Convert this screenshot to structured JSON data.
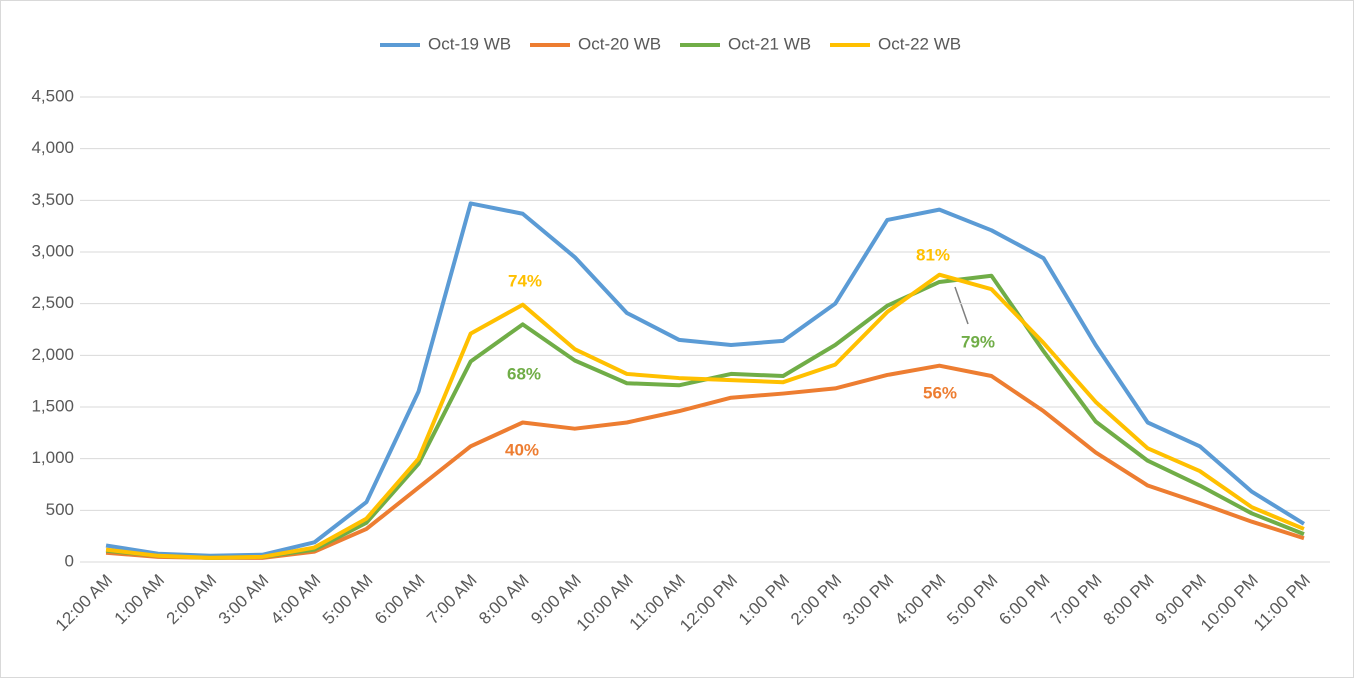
{
  "chart_data": {
    "type": "line",
    "categories": [
      "12:00 AM",
      "1:00 AM",
      "2:00 AM",
      "3:00 AM",
      "4:00 AM",
      "5:00 AM",
      "6:00 AM",
      "7:00 AM",
      "8:00 AM",
      "9:00 AM",
      "10:00 AM",
      "11:00 AM",
      "12:00 PM",
      "1:00 PM",
      "2:00 PM",
      "3:00 PM",
      "4:00 PM",
      "5:00 PM",
      "6:00 PM",
      "7:00 PM",
      "8:00 PM",
      "9:00 PM",
      "10:00 PM",
      "11:00 PM"
    ],
    "series": [
      {
        "name": "Oct-19 WB",
        "color": "#5b9bd5",
        "values": [
          160,
          80,
          60,
          70,
          190,
          580,
          1650,
          3470,
          3370,
          2950,
          2410,
          2150,
          2100,
          2140,
          2500,
          3310,
          3410,
          3210,
          2940,
          2100,
          1350,
          1120,
          680,
          370
        ]
      },
      {
        "name": "Oct-20 WB",
        "color": "#ed7d31",
        "values": [
          90,
          50,
          40,
          40,
          100,
          320,
          720,
          1120,
          1350,
          1290,
          1350,
          1460,
          1590,
          1630,
          1680,
          1810,
          1900,
          1800,
          1460,
          1060,
          740,
          570,
          390,
          230
        ]
      },
      {
        "name": "Oct-21 WB",
        "color": "#70ad47",
        "values": [
          110,
          60,
          40,
          50,
          120,
          380,
          950,
          1940,
          2300,
          1950,
          1730,
          1710,
          1820,
          1800,
          2100,
          2480,
          2710,
          2770,
          2040,
          1360,
          980,
          740,
          470,
          270
        ]
      },
      {
        "name": "Oct-22 WB",
        "color": "#ffc000",
        "values": [
          120,
          60,
          40,
          50,
          140,
          420,
          1000,
          2210,
          2490,
          2060,
          1820,
          1780,
          1760,
          1740,
          1910,
          2420,
          2780,
          2640,
          2120,
          1550,
          1100,
          880,
          530,
          320
        ]
      }
    ],
    "annotations": [
      {
        "text": "74%",
        "color": "#ffc000"
      },
      {
        "text": "68%",
        "color": "#70ad47"
      },
      {
        "text": "40%",
        "color": "#ed7d31"
      },
      {
        "text": "81%",
        "color": "#ffc000"
      },
      {
        "text": "79%",
        "color": "#70ad47"
      },
      {
        "text": "56%",
        "color": "#ed7d31"
      }
    ],
    "ylim": [
      0,
      4500
    ],
    "yticks": [
      0,
      500,
      {
        "value": 1000,
        "label": "1,000"
      },
      {
        "value": 1500,
        "label": "1,500"
      },
      {
        "value": 2000,
        "label": "2,000"
      },
      {
        "value": 2500,
        "label": "2,500"
      },
      {
        "value": 3000,
        "label": "3,000"
      },
      {
        "value": 3500,
        "label": "3,500"
      },
      {
        "value": 4000,
        "label": "4,000"
      },
      {
        "value": 4500,
        "label": "4,500"
      }
    ],
    "grid": true,
    "legend": "top"
  }
}
